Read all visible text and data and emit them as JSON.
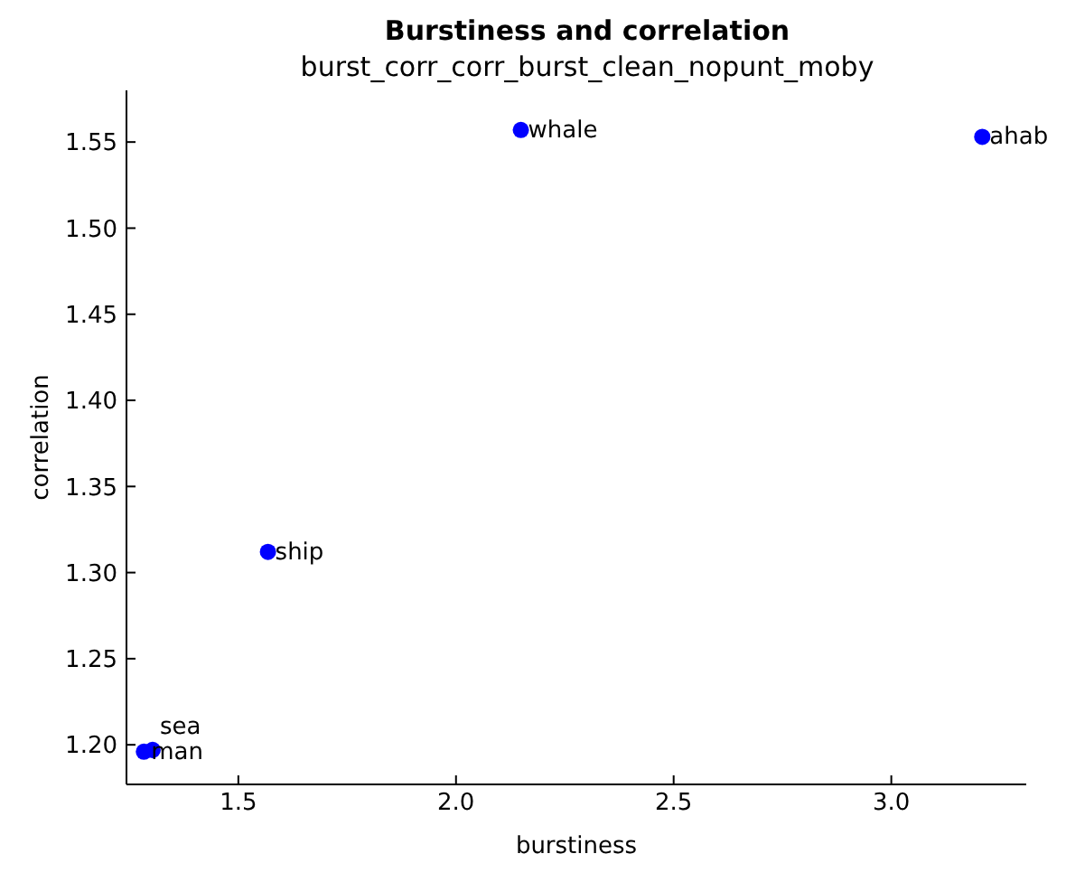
{
  "chart_data": {
    "type": "scatter",
    "title": "Burstiness and correlation",
    "subtitle": "burst_corr_corr_burst_clean_nopunt_moby",
    "xlabel": "burstiness",
    "ylabel": "correlation",
    "x": [
      1.283,
      1.303,
      1.568,
      2.149,
      3.209
    ],
    "values": [
      1.196,
      1.197,
      1.312,
      1.557,
      1.553
    ],
    "color": "#0000ff",
    "marker": "circle",
    "xlim": [
      1.243,
      3.31
    ],
    "xticks": [
      {
        "value": 1.5,
        "label": "1.5"
      },
      {
        "value": 2.0,
        "label": "2.0"
      },
      {
        "value": 2.5,
        "label": "2.5"
      },
      {
        "value": 3.0,
        "label": "3.0"
      }
    ],
    "ylim": [
      1.177,
      1.58
    ],
    "yticks": [
      {
        "value": 1.2,
        "label": "1.20"
      },
      1.25,
      {
        "value": 1.3,
        "label": "1.30"
      },
      1.35,
      {
        "value": 1.4,
        "label": "1.40"
      },
      1.45,
      {
        "value": 1.5,
        "label": "1.50"
      },
      1.55
    ],
    "annotations": [
      {
        "text": "man",
        "x": 1.283,
        "y": 1.196
      },
      {
        "text": "sea",
        "x": 1.303,
        "y": 1.197
      },
      {
        "text": "ship",
        "x": 1.568,
        "y": 1.312
      },
      {
        "text": "whale",
        "x": 2.149,
        "y": 1.557
      },
      {
        "text": "ahab",
        "x": 3.209,
        "y": 1.553
      }
    ],
    "grid": false,
    "legend": false
  }
}
